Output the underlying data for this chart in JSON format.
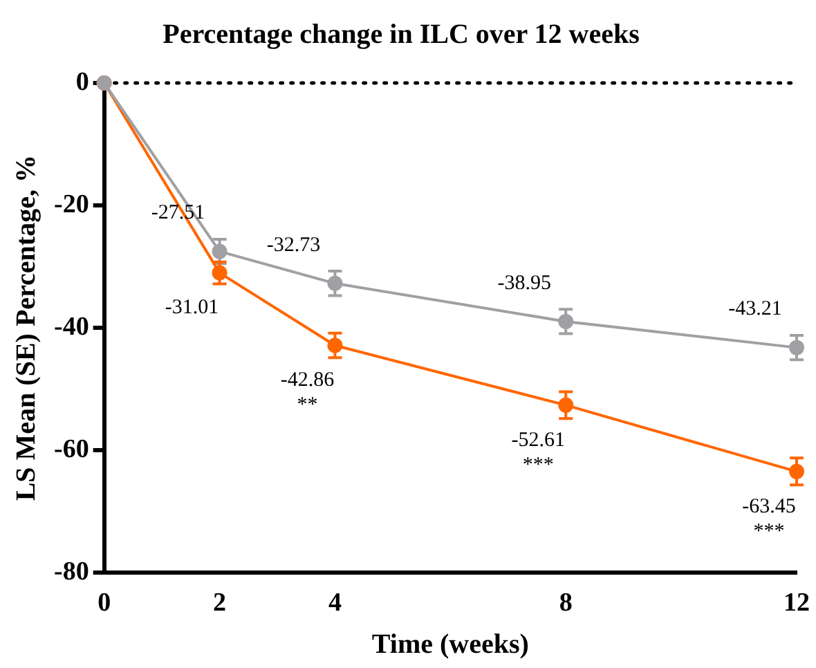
{
  "chart_data": {
    "type": "line",
    "title": "Percentage change in ILC over 12 weeks",
    "xlabel": "Time (weeks)",
    "ylabel": "LS Mean (SE) Percentage, %",
    "x": [
      0,
      2,
      4,
      8,
      12
    ],
    "series": [
      {
        "color": "#a0a0a4",
        "values": [
          0,
          -27.51,
          -32.73,
          -38.95,
          -43.21
        ],
        "errors": [
          null,
          2,
          2,
          2,
          2
        ],
        "value_labels": [
          null,
          "-27.51",
          "-32.73",
          "-38.95",
          "-43.21"
        ]
      },
      {
        "color": "#ff6600",
        "values": [
          0,
          -31.01,
          -42.86,
          -52.61,
          -63.45
        ],
        "errors": [
          null,
          1.8,
          2,
          2.2,
          2.2
        ],
        "value_labels": [
          null,
          "-31.01",
          "-42.86",
          "-52.61",
          "-63.45"
        ]
      }
    ],
    "annotations": [
      {
        "text": "**",
        "x": 4,
        "y": -42.86
      },
      {
        "text": "***",
        "x": 8,
        "y": -52.61
      },
      {
        "text": "***",
        "x": 12,
        "y": -63.45
      }
    ],
    "ref_lines": [
      {
        "axis": "y",
        "value": 0,
        "color": "#000000",
        "line_style": "dotted"
      }
    ],
    "xlim": [
      0,
      12
    ],
    "xticks": [
      0,
      2,
      4,
      8,
      12
    ],
    "ylim": [
      -80,
      0
    ],
    "yticks": [
      0,
      -20,
      -40,
      -60,
      -80
    ],
    "grid": false,
    "legend": false,
    "marker": "circle",
    "line_style": "solid"
  }
}
